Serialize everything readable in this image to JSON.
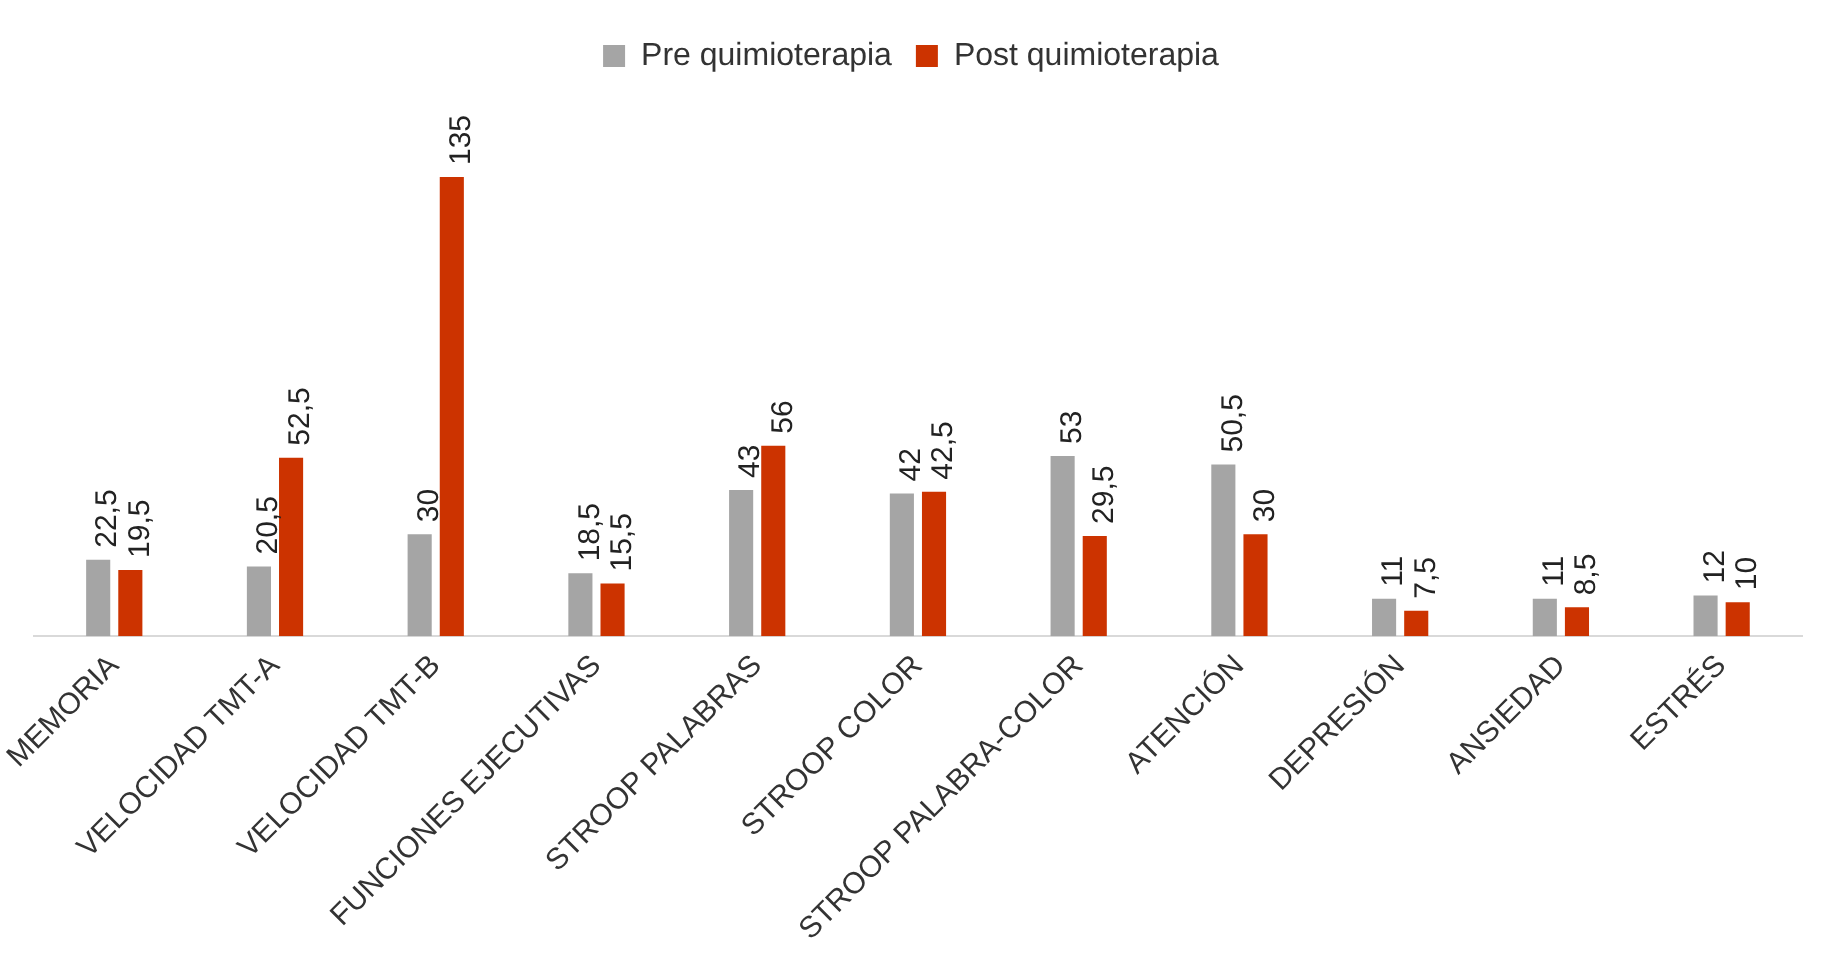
{
  "chart_data": {
    "type": "bar",
    "categories": [
      "MEMORIA",
      "VELOCIDAD TMT-A",
      "VELOCIDAD TMT-B",
      "FUNCIONES EJECUTIVAS",
      "STROOP PALABRAS",
      "STROOP COLOR",
      "STROOP PALABRA-COLOR",
      "ATENCIÓN",
      "DEPRESIÓN",
      "ANSIEDAD",
      "ESTRÉS"
    ],
    "series": [
      {
        "name": "Pre quimioterapia",
        "color": "#a5a5a5",
        "values": [
          22.5,
          20.5,
          30,
          18.5,
          43,
          42,
          53,
          50.5,
          11,
          11,
          12
        ],
        "value_labels": [
          "22,5",
          "20,5",
          "30",
          "18,5",
          "43",
          "42",
          "53",
          "50,5",
          "11",
          "11",
          "12"
        ]
      },
      {
        "name": "Post quimioterapia",
        "color": "#cc3300",
        "values": [
          19.5,
          52.5,
          135,
          15.5,
          56,
          42.5,
          29.5,
          30,
          7.5,
          8.5,
          10
        ],
        "value_labels": [
          "19,5",
          "52,5",
          "135",
          "15,5",
          "56",
          "42,5",
          "29,5",
          "30",
          "7,5",
          "8,5",
          "10"
        ]
      }
    ],
    "legend": "top",
    "grid": false
  }
}
